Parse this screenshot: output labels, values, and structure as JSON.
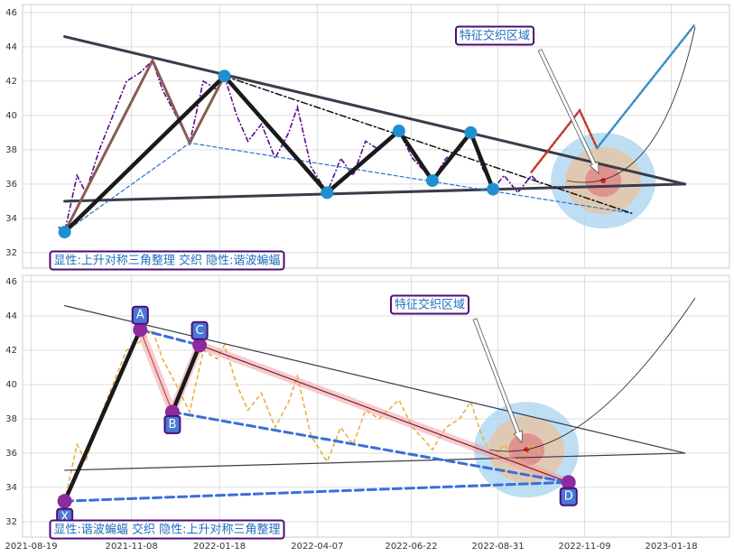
{
  "chart_data": {
    "type": "line",
    "xlim": [
      "2021-08-12",
      "2023-03-06"
    ],
    "xticks": [
      "2021-08-19",
      "2021-11-08",
      "2022-01-18",
      "2022-04-07",
      "2022-06-22",
      "2022-08-31",
      "2022-11-09",
      "2023-01-18"
    ],
    "x": [
      "2021-09-10",
      "2021-09-15",
      "2021-09-25",
      "2021-10-02",
      "2021-10-13",
      "2021-10-24",
      "2021-11-04",
      "2021-11-15",
      "2021-11-25",
      "2021-12-03",
      "2021-12-14",
      "2021-12-25",
      "2022-01-05",
      "2022-01-16",
      "2022-01-22",
      "2022-02-01",
      "2022-02-10",
      "2022-02-21",
      "2022-03-04",
      "2022-03-15",
      "2022-03-22",
      "2022-04-02",
      "2022-04-15",
      "2022-04-26",
      "2022-05-06",
      "2022-05-16",
      "2022-05-27",
      "2022-06-12",
      "2022-06-23",
      "2022-07-02",
      "2022-07-09",
      "2022-07-20",
      "2022-07-31",
      "2022-08-09",
      "2022-08-18",
      "2022-08-27",
      "2022-09-05",
      "2022-09-16",
      "2022-09-27",
      "2022-10-04"
    ],
    "values": [
      33.5,
      33.2,
      36.5,
      35.5,
      38,
      40,
      42,
      42.5,
      43.2,
      41.5,
      40,
      38.4,
      42,
      41.5,
      42.3,
      40,
      38.5,
      39.5,
      37.5,
      39,
      40.5,
      37,
      35.5,
      37.5,
      36.5,
      38.5,
      38,
      39.1,
      37.5,
      36.8,
      36.2,
      37.5,
      38,
      39,
      37,
      35.7,
      36.5,
      35.5,
      36.5,
      36
    ],
    "panels": [
      {
        "ylim": [
          31.1,
          46.47
        ],
        "yticks": [
          32,
          34,
          36,
          38,
          40,
          42,
          44,
          46
        ],
        "grid": true,
        "price_color": "#5b0a8c",
        "price_style": "dashdot",
        "label": "显性:上升对称三角整理 交织 隐性:谐波蝙蝠",
        "annotation": "特征交织区域",
        "target": {
          "x": "2022-11-24",
          "value": 36.2
        },
        "lines": [
          {
            "x": [
              "2021-09-15",
              "2023-01-29"
            ],
            "values": [
              44.6,
              36.0
            ],
            "color": "#3a3c4a",
            "style": "thick"
          },
          {
            "x": [
              "2021-09-15",
              "2023-01-29"
            ],
            "values": [
              35.0,
              36.0
            ],
            "color": "#3a3c4a",
            "style": "thick"
          },
          {
            "x": [
              "2021-09-15",
              "2021-11-25",
              "2021-12-25",
              "2022-01-22"
            ],
            "values": [
              33.2,
              43.2,
              38.4,
              42.3
            ],
            "color": "#8b5a55",
            "style": "thick"
          },
          {
            "x": [
              "2021-09-15",
              "2021-12-25",
              "2022-12-17"
            ],
            "values": [
              33.2,
              38.4,
              34.3
            ],
            "color": "#3a78d0",
            "style": "dashed"
          },
          {
            "x": [
              "2022-01-22",
              "2022-12-17"
            ],
            "values": [
              42.3,
              34.3
            ],
            "color": "#111",
            "style": "dashdot"
          },
          {
            "x": [
              "2021-09-15",
              "2022-01-22",
              "2022-04-15",
              "2022-06-12",
              "2022-07-09",
              "2022-08-09",
              "2022-08-27"
            ],
            "values": [
              33.2,
              42.3,
              35.5,
              39.1,
              36.2,
              39.0,
              35.7
            ],
            "color": "#1a1a1a",
            "style": "heavy"
          },
          {
            "x": [
              "2022-09-27",
              "2022-11-05",
              "2022-11-19"
            ],
            "values": [
              36.7,
              40.3,
              38.1
            ],
            "color": "#c0392b",
            "style": "proj"
          },
          {
            "x": [
              "2022-11-19",
              "2023-02-06"
            ],
            "values": [
              38.1,
              45.3
            ],
            "color": "#3a8ec7",
            "style": "proj"
          }
        ],
        "points": [
          {
            "x": "2021-09-15",
            "value": 33.2,
            "color": "#1f8fcf"
          },
          {
            "x": "2022-01-22",
            "value": 42.3,
            "color": "#1f8fcf"
          },
          {
            "x": "2022-04-15",
            "value": 35.5,
            "color": "#1f8fcf"
          },
          {
            "x": "2022-06-12",
            "value": 39.1,
            "color": "#1f8fcf"
          },
          {
            "x": "2022-07-09",
            "value": 36.2,
            "color": "#1f8fcf"
          },
          {
            "x": "2022-08-09",
            "value": 39.0,
            "color": "#1f8fcf"
          },
          {
            "x": "2022-08-27",
            "value": 35.7,
            "color": "#1f8fcf"
          }
        ]
      },
      {
        "ylim": [
          31.1,
          46.37
        ],
        "yticks": [
          32,
          34,
          36,
          38,
          40,
          42,
          44,
          46
        ],
        "grid": true,
        "price_color": "#e8b040",
        "price_style": "dashed",
        "label": "显性:谐波蝙蝠 交织 隐性:上升对称三角整理",
        "annotation": "特征交织区域",
        "target": {
          "x": "2022-09-23",
          "value": 36.2
        },
        "lines": [
          {
            "x": [
              "2021-09-15",
              "2023-01-29"
            ],
            "values": [
              44.6,
              36.0
            ],
            "color": "#3a3c4a",
            "style": "thin"
          },
          {
            "x": [
              "2021-09-15",
              "2023-01-29"
            ],
            "values": [
              35.0,
              36.0
            ],
            "color": "#3a3c4a",
            "style": "thin"
          },
          {
            "x": [
              "2021-11-15",
              "2021-12-11",
              "2022-01-02",
              "2022-10-27"
            ],
            "values": [
              43.2,
              38.4,
              42.3,
              34.3
            ],
            "color": "#f0a0a8",
            "style": "band"
          },
          {
            "x": [
              "2021-09-15",
              "2021-11-15"
            ],
            "values": [
              33.2,
              43.2
            ],
            "color": "#1a1a1a",
            "style": "heavy"
          },
          {
            "x": [
              "2021-12-11",
              "2022-01-02"
            ],
            "values": [
              38.4,
              42.3
            ],
            "color": "#1a1a1a",
            "style": "heavy"
          },
          {
            "x": [
              "2021-11-15",
              "2021-12-11"
            ],
            "values": [
              43.2,
              38.4
            ],
            "color": "#c0504d",
            "style": "thin"
          },
          {
            "x": [
              "2022-01-02",
              "2022-10-27"
            ],
            "values": [
              42.3,
              34.3
            ],
            "color": "#7a1f1f",
            "style": "thin"
          },
          {
            "x": [
              "2021-11-15",
              "2022-01-02"
            ],
            "values": [
              43.2,
              42.3
            ],
            "color": "#3a6fd8",
            "style": "bigdash"
          },
          {
            "x": [
              "2021-12-11",
              "2022-10-27"
            ],
            "values": [
              38.4,
              34.3
            ],
            "color": "#3a6fd8",
            "style": "bigdash"
          },
          {
            "x": [
              "2021-09-15",
              "2022-10-27"
            ],
            "values": [
              33.2,
              34.3
            ],
            "color": "#3a6fd8",
            "style": "bigdash"
          }
        ],
        "points": [
          {
            "x": "2021-09-15",
            "value": 33.2,
            "color": "#8e2a9e",
            "label": "X"
          },
          {
            "x": "2021-11-15",
            "value": 43.2,
            "color": "#8e2a9e",
            "label": "A"
          },
          {
            "x": "2021-12-11",
            "value": 38.4,
            "color": "#8e2a9e",
            "label": "B"
          },
          {
            "x": "2022-01-02",
            "value": 42.3,
            "color": "#8e2a9e",
            "label": "C"
          },
          {
            "x": "2022-10-27",
            "value": 34.3,
            "color": "#8e2a9e",
            "label": "D"
          }
        ]
      }
    ]
  }
}
